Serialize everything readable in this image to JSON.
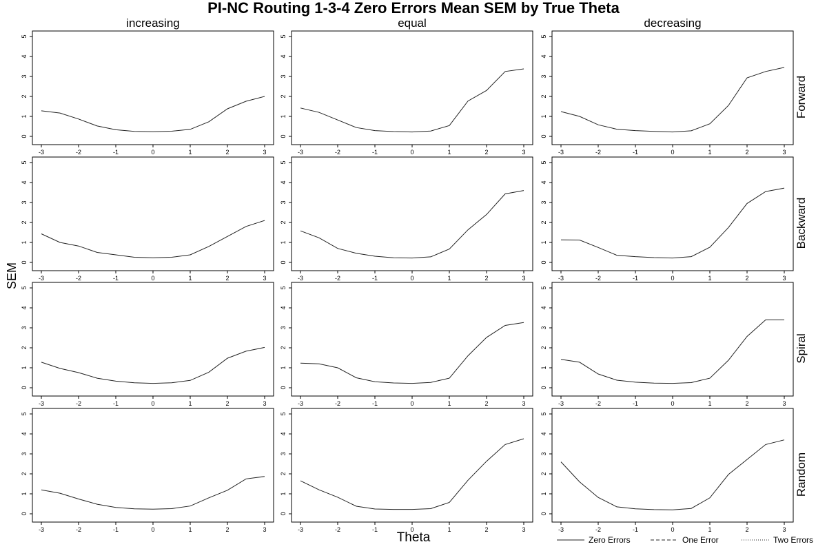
{
  "title": "PI-NC Routing 1-3-4 Zero Errors Mean SEM by True Theta",
  "xlabel": "Theta",
  "ylabel": "SEM",
  "columns": [
    "increasing",
    "equal",
    "decreasing"
  ],
  "rows": [
    "Forward",
    "Backward",
    "Spiral",
    "Random"
  ],
  "legend": [
    {
      "label": "Zero Errors",
      "style": "solid"
    },
    {
      "label": "One Error",
      "style": "dashed"
    },
    {
      "label": "Two Errors",
      "style": "dotted"
    }
  ],
  "chart_data": {
    "type": "line",
    "title": "PI-NC Routing 1-3-4 Zero Errors Mean SEM by True Theta",
    "xlabel": "Theta",
    "ylabel": "SEM",
    "xlim": [
      -3,
      3
    ],
    "ylim": [
      0,
      5
    ],
    "xticks": [
      -3,
      -2,
      -1,
      0,
      1,
      2,
      3
    ],
    "yticks": [
      0,
      1,
      2,
      3,
      4,
      5
    ],
    "x": [
      -3,
      -2.5,
      -2,
      -1.5,
      -1,
      -0.5,
      0,
      0.5,
      1,
      1.5,
      2,
      2.5,
      3
    ],
    "line_color": "#222222",
    "legend_placement": "bottom-right",
    "panels": [
      {
        "row": "Forward",
        "column": "increasing",
        "series": [
          {
            "name": "Zero Errors",
            "values": [
              1.28,
              1.17,
              0.87,
              0.52,
              0.33,
              0.25,
              0.23,
              0.26,
              0.35,
              0.73,
              1.38,
              1.76,
              2.0
            ]
          }
        ]
      },
      {
        "row": "Forward",
        "column": "equal",
        "series": [
          {
            "name": "Zero Errors",
            "values": [
              1.42,
              1.2,
              0.82,
              0.44,
              0.29,
              0.24,
              0.22,
              0.27,
              0.54,
              1.77,
              2.3,
              3.25,
              3.38
            ]
          }
        ]
      },
      {
        "row": "Forward",
        "column": "decreasing",
        "series": [
          {
            "name": "Zero Errors",
            "values": [
              1.24,
              1.0,
              0.58,
              0.36,
              0.29,
              0.25,
              0.22,
              0.28,
              0.63,
              1.55,
              2.93,
              3.25,
              3.45
            ]
          }
        ]
      },
      {
        "row": "Backward",
        "column": "increasing",
        "series": [
          {
            "name": "Zero Errors",
            "values": [
              1.43,
              1.0,
              0.82,
              0.5,
              0.38,
              0.26,
              0.23,
              0.26,
              0.38,
              0.8,
              1.3,
              1.8,
              2.1
            ]
          }
        ]
      },
      {
        "row": "Backward",
        "column": "equal",
        "series": [
          {
            "name": "Zero Errors",
            "values": [
              1.58,
              1.23,
              0.7,
              0.46,
              0.31,
              0.23,
              0.22,
              0.28,
              0.67,
              1.63,
              2.4,
              3.43,
              3.6
            ]
          }
        ]
      },
      {
        "row": "Backward",
        "column": "decreasing",
        "series": [
          {
            "name": "Zero Errors",
            "values": [
              1.13,
              1.12,
              0.75,
              0.36,
              0.29,
              0.24,
              0.22,
              0.29,
              0.76,
              1.75,
              2.95,
              3.55,
              3.72
            ]
          }
        ]
      },
      {
        "row": "Spiral",
        "column": "increasing",
        "series": [
          {
            "name": "Zero Errors",
            "values": [
              1.28,
              0.97,
              0.76,
              0.48,
              0.33,
              0.25,
              0.22,
              0.25,
              0.37,
              0.78,
              1.48,
              1.83,
              2.02
            ]
          }
        ]
      },
      {
        "row": "Spiral",
        "column": "equal",
        "series": [
          {
            "name": "Zero Errors",
            "values": [
              1.23,
              1.2,
              1.0,
              0.5,
              0.3,
              0.24,
              0.22,
              0.27,
              0.48,
              1.6,
              2.52,
              3.12,
              3.27
            ]
          }
        ]
      },
      {
        "row": "Spiral",
        "column": "decreasing",
        "series": [
          {
            "name": "Zero Errors",
            "values": [
              1.42,
              1.28,
              0.69,
              0.38,
              0.28,
              0.23,
              0.22,
              0.26,
              0.48,
              1.38,
              2.57,
              3.4,
              3.4
            ]
          }
        ]
      },
      {
        "row": "Random",
        "column": "increasing",
        "series": [
          {
            "name": "Zero Errors",
            "values": [
              1.2,
              1.03,
              0.74,
              0.48,
              0.32,
              0.25,
              0.23,
              0.26,
              0.39,
              0.8,
              1.18,
              1.75,
              1.87
            ]
          }
        ]
      },
      {
        "row": "Random",
        "column": "equal",
        "series": [
          {
            "name": "Zero Errors",
            "values": [
              1.65,
              1.2,
              0.83,
              0.38,
              0.24,
              0.22,
              0.22,
              0.26,
              0.57,
              1.68,
              2.63,
              3.47,
              3.76
            ]
          }
        ]
      },
      {
        "row": "Random",
        "column": "decreasing",
        "series": [
          {
            "name": "Zero Errors",
            "values": [
              2.6,
              1.6,
              0.82,
              0.35,
              0.25,
              0.21,
              0.2,
              0.27,
              0.8,
              1.97,
              2.72,
              3.47,
              3.7
            ]
          }
        ]
      }
    ]
  }
}
